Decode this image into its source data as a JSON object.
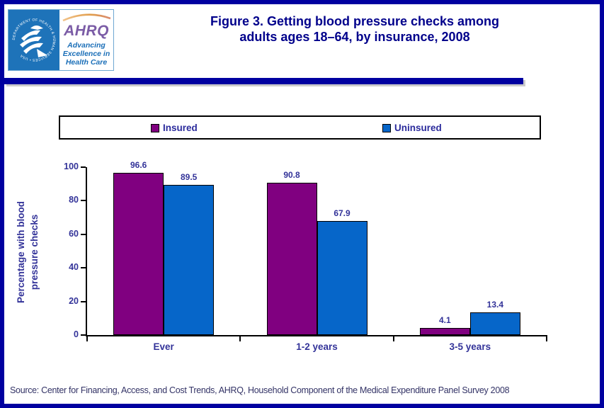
{
  "header": {
    "title_line1": "Figure 3. Getting blood pressure checks among",
    "title_line2": "adults ages 18–64, by insurance, 2008"
  },
  "logo": {
    "hhs_circle_text": "DEPARTMENT OF HEALTH & HUMAN SERVICES • USA",
    "ahrq_acronym": "AHRQ",
    "tagline_line1": "Advancing",
    "tagline_line2": "Excellence in",
    "tagline_line3": "Health Care"
  },
  "footer": {
    "source": "Source: Center for Financing, Access, and Cost Trends, AHRQ, Household Component of the Medical Expenditure Panel Survey 2008"
  },
  "colors": {
    "page_border": "#0000A0",
    "title_navy": "#00008B",
    "chart_text": "#333399",
    "insured": "#800080",
    "uninsured": "#0666C9",
    "hhs_blue": "#1E73B9",
    "ahrq_purple": "#7B5CA6",
    "arc_orange": "#E09C4A"
  },
  "chart_data": {
    "type": "bar",
    "title": "Figure 3. Getting blood pressure checks among adults ages 18–64, by insurance, 2008",
    "categories": [
      "Ever",
      "1-2 years",
      "3-5 years"
    ],
    "series": [
      {
        "name": "Insured",
        "color": "#800080",
        "values": [
          96.6,
          90.8,
          4.1
        ]
      },
      {
        "name": "Uninsured",
        "color": "#0666C9",
        "values": [
          89.5,
          67.9,
          13.4
        ]
      }
    ],
    "ylabel": "Percentage with blood pressure checks",
    "ylabel_lines": [
      "Percentage with blood",
      "pressure checks"
    ],
    "xlabel": "",
    "ylim": [
      0,
      100
    ],
    "yticks": [
      0,
      20,
      40,
      60,
      80,
      100
    ],
    "grid": false,
    "legend_position": "top",
    "value_labels": true
  }
}
